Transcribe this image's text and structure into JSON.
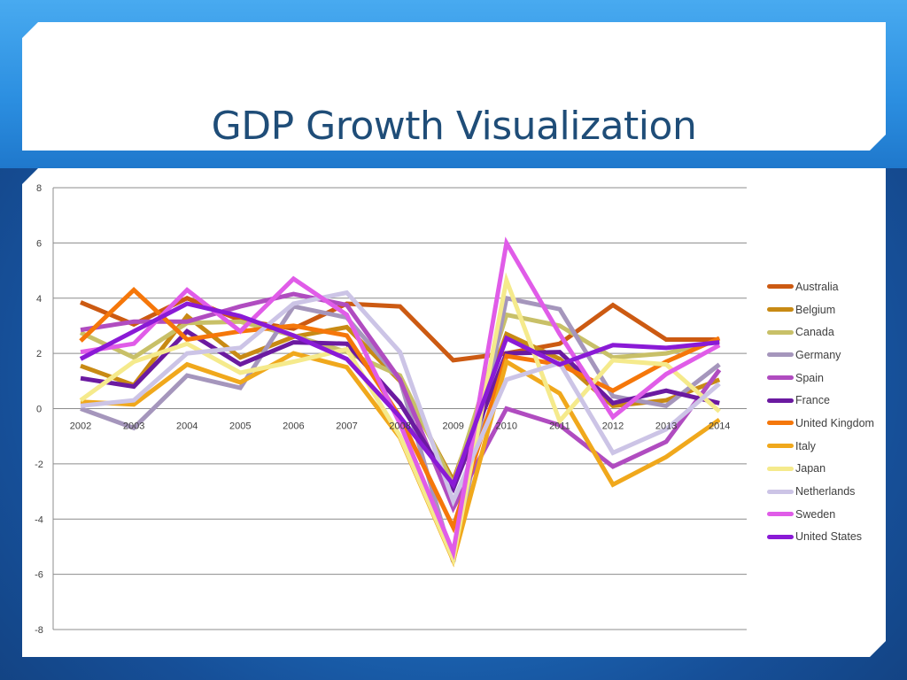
{
  "title": "GDP Growth Visualization",
  "chart_data": {
    "type": "line",
    "x": [
      "2002",
      "2003",
      "2004",
      "2005",
      "2006",
      "2007",
      "2008",
      "2009",
      "2010",
      "2011",
      "2012",
      "2013",
      "2014"
    ],
    "ylim": [
      -8,
      8
    ],
    "yticks": [
      8,
      6,
      4,
      2,
      0,
      -2,
      -4,
      -6,
      -8
    ],
    "grid": true,
    "legend_position": "right",
    "series": [
      {
        "name": "Australia",
        "color": "#cc5a12",
        "values": [
          3.85,
          3.05,
          4.0,
          3.2,
          2.9,
          3.8,
          3.7,
          1.75,
          2.0,
          2.35,
          3.75,
          2.5,
          2.5
        ]
      },
      {
        "name": "Belgium",
        "color": "#c88a14",
        "values": [
          1.55,
          0.85,
          3.35,
          1.85,
          2.6,
          2.95,
          1.0,
          -2.6,
          2.7,
          1.8,
          0.1,
          0.3,
          1.05
        ]
      },
      {
        "name": "Canada",
        "color": "#c8c068",
        "values": [
          2.75,
          1.85,
          3.1,
          3.15,
          2.65,
          2.05,
          1.2,
          -2.75,
          3.4,
          3.0,
          1.85,
          2.0,
          2.45
        ]
      },
      {
        "name": "Germany",
        "color": "#a596bc",
        "values": [
          0.0,
          -0.7,
          1.2,
          0.75,
          3.7,
          3.3,
          1.05,
          -5.55,
          4.0,
          3.6,
          0.45,
          0.1,
          1.6
        ]
      },
      {
        "name": "Spain",
        "color": "#b04cc0",
        "values": [
          2.85,
          3.15,
          3.15,
          3.7,
          4.15,
          3.75,
          1.05,
          -3.6,
          0.0,
          -0.6,
          -2.1,
          -1.2,
          1.4
        ]
      },
      {
        "name": "France",
        "color": "#6b1aa0",
        "values": [
          1.1,
          0.8,
          2.8,
          1.6,
          2.4,
          2.35,
          0.2,
          -2.9,
          2.0,
          2.05,
          0.2,
          0.65,
          0.2
        ]
      },
      {
        "name": "United Kingdom",
        "color": "#f5770a",
        "values": [
          2.45,
          4.3,
          2.5,
          2.8,
          3.0,
          2.65,
          -0.3,
          -4.3,
          1.9,
          1.6,
          0.65,
          1.7,
          2.55
        ]
      },
      {
        "name": "Italy",
        "color": "#f0a81c",
        "values": [
          0.25,
          0.15,
          1.6,
          0.95,
          2.0,
          1.5,
          -1.05,
          -5.5,
          1.7,
          0.55,
          -2.75,
          -1.75,
          -0.4
        ]
      },
      {
        "name": "Japan",
        "color": "#f5ea8c",
        "values": [
          0.3,
          1.7,
          2.35,
          1.3,
          1.7,
          2.15,
          -1.0,
          -5.45,
          4.65,
          -0.45,
          1.75,
          1.6,
          -0.1
        ]
      },
      {
        "name": "Netherlands",
        "color": "#ccc4e6",
        "values": [
          0.1,
          0.3,
          2.0,
          2.2,
          3.8,
          4.2,
          2.05,
          -3.35,
          1.05,
          1.65,
          -1.6,
          -0.75,
          0.9
        ]
      },
      {
        "name": "Sweden",
        "color": "#e05ce8",
        "values": [
          2.05,
          2.35,
          4.3,
          2.8,
          4.7,
          3.4,
          -0.55,
          -5.2,
          6.0,
          2.7,
          -0.3,
          1.25,
          2.3
        ]
      },
      {
        "name": "United States",
        "color": "#8a1ad6",
        "values": [
          1.8,
          2.8,
          3.8,
          3.35,
          2.65,
          1.8,
          -0.3,
          -2.75,
          2.55,
          1.6,
          2.3,
          2.2,
          2.4
        ]
      }
    ]
  }
}
